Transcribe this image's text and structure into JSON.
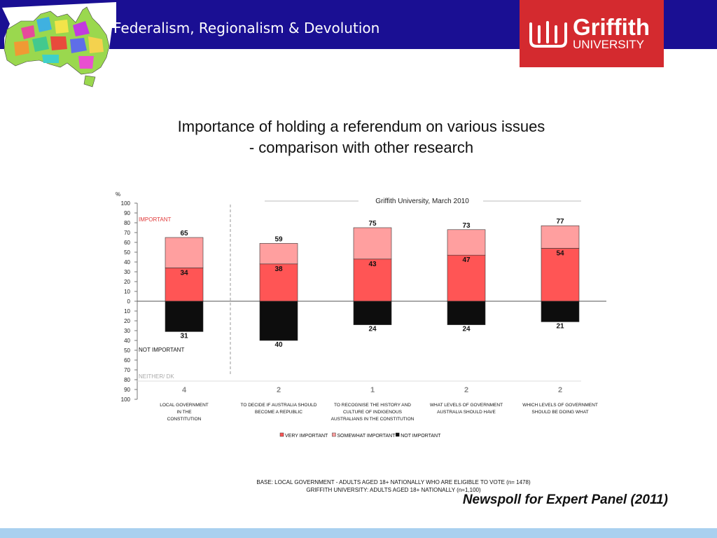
{
  "header": {
    "deck_title": "Federalism, Regionalism & Devolution",
    "logo_word": "Griffith",
    "logo_sub": "UNIVERSITY",
    "band_color": "#1a0f93",
    "logo_color": "#d42a2f"
  },
  "title_lines": [
    "Importance of holding a referendum on various issues",
    "- comparison with other research"
  ],
  "notes": {
    "base_lines": [
      "BASE: LOCAL GOVERNMENT - ADULTS AGED 18+ NATIONALLY WHO ARE ELIGIBLE TO VOTE (n= 1478)",
      "GRIFFITH UNIVERSITY: ADULTS AGED 18+ NATIONALLY (n=1,100)"
    ],
    "source": "Newspoll for Expert Panel (2011)"
  },
  "chart_data": {
    "type": "bar",
    "unit_label": "%",
    "stacked": true,
    "yticks_top": [
      0,
      10,
      20,
      30,
      40,
      50,
      60,
      70,
      80,
      90,
      100
    ],
    "yticks_bottom": [
      10,
      20,
      30,
      40,
      50,
      60,
      70,
      80,
      90,
      100
    ],
    "region_labels": {
      "important": "IMPORTANT",
      "not_important": "NOT IMPORTANT",
      "neither": "NEITHER/ DK"
    },
    "group_label": "Griffith University, March 2010",
    "categories": [
      [
        "LOCAL GOVERNMENT",
        "IN THE",
        "CONSTITUTION"
      ],
      [
        "TO DECIDE IF AUSTRALIA SHOULD",
        "BECOME A REPUBLIC"
      ],
      [
        "TO RECOGNISE THE HISTORY AND",
        "CULTURE OF INDIGENOUS",
        "AUSTRALIANS IN THE CONSTITUTION"
      ],
      [
        "WHAT LEVELS OF GOVERNMENT",
        "AUSTRALIA SHOULD HAVE"
      ],
      [
        "WHICH LEVELS OF GOVERNMENT",
        "SHOULD BE DOING WHAT"
      ]
    ],
    "series": [
      {
        "name": "VERY IMPORTANT",
        "color": "#ff5555",
        "values": [
          34,
          38,
          43,
          47,
          54
        ]
      },
      {
        "name": "SOMEWHAT IMPORTANT",
        "color": "#ff9f9f",
        "values": [
          31,
          21,
          32,
          26,
          23
        ]
      },
      {
        "name": "NOT IMPORTANT",
        "color": "#0d0d0d",
        "values": [
          31,
          40,
          24,
          24,
          21
        ]
      }
    ],
    "important_totals": [
      65,
      59,
      75,
      73,
      77
    ],
    "not_important_totals": [
      31,
      40,
      24,
      24,
      21
    ],
    "neither_dk": [
      4,
      2,
      1,
      2,
      2
    ],
    "ylim_top": [
      0,
      100
    ],
    "ylim_bottom": [
      0,
      100
    ],
    "legend_position": "bottom"
  }
}
